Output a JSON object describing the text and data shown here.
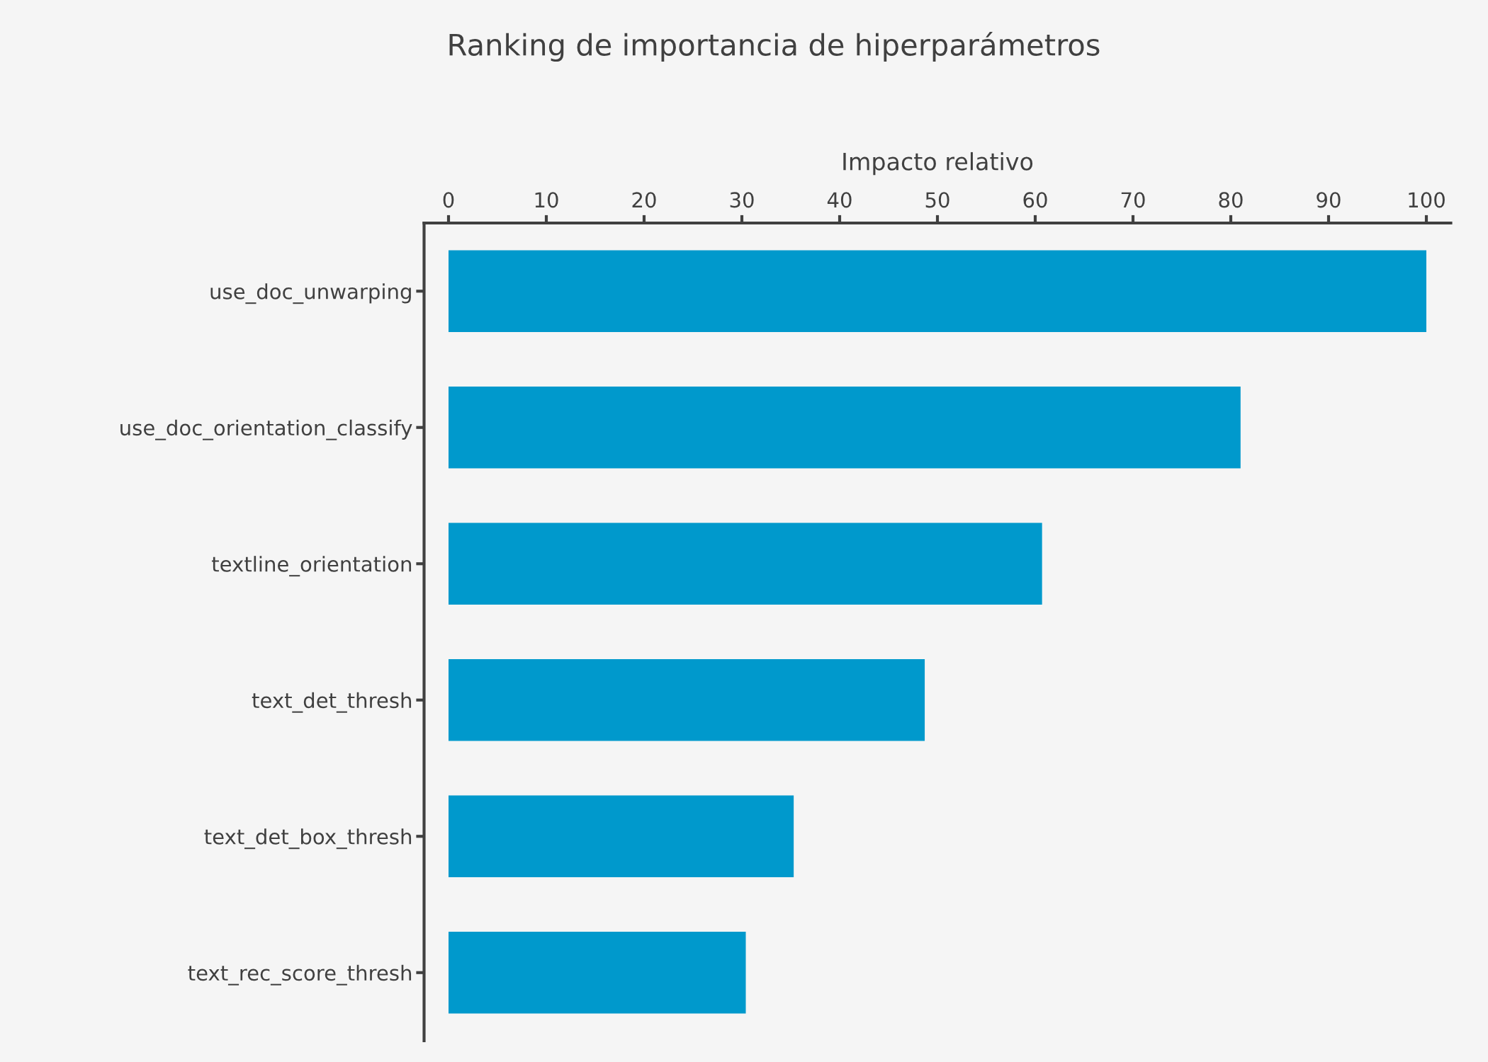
{
  "chart_data": {
    "type": "bar",
    "orientation": "horizontal",
    "title": "Ranking de importancia de hiperparámetros",
    "xlabel": "Impacto relativo",
    "categories": [
      "use_doc_unwarping",
      "use_doc_orientation_classify",
      "textline_orientation",
      "text_det_thresh",
      "text_det_box_thresh",
      "text_rec_score_thresh"
    ],
    "values": [
      100,
      81,
      60.7,
      48.7,
      35.3,
      30.4
    ],
    "color": "#0099cc",
    "xlim": [
      -2.5,
      102.5
    ],
    "xticks": [
      0,
      10,
      20,
      30,
      40,
      50,
      60,
      70,
      80,
      90,
      100
    ],
    "grid": false
  }
}
